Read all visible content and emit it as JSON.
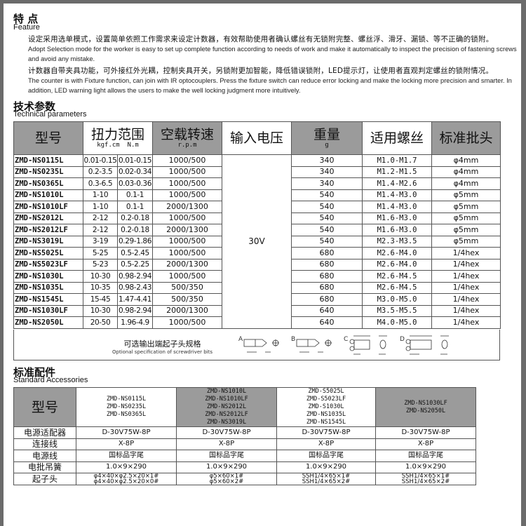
{
  "feature": {
    "title_cn": "特 点",
    "title_en": "Feature",
    "p1_cn": "设定采用选单模式，设置简单依照工作需求来设定计数器，有效帮助使用者确认螺丝有无锁附完整、螺丝浮、滑牙、漏锁、等不正确的锁附。",
    "p1_en": "Adopt Selection mode for the worker is easy to set up complete function according to needs of work and make it automatically to inspect the precision of fastening screws and avoid any mistake.",
    "p2_cn": "计数器自带夹具功能，可外接红外光耦，控制夹具开关，另锁附更加智能，降低错误锁附，LED提示灯，让使用者直观判定螺丝的锁附情况。",
    "p2_en": "The counter is with Fixture function, can join with IR optocouplers. Press the fixture switch can reduce error locking and make the locking more precision and smarter. In addition, LED warning light allows the users to make the well locking judgment more intuitively."
  },
  "tech": {
    "title_cn": "技术参数",
    "title_en": "Technical   parameters",
    "headers": {
      "model": "型号",
      "torque": "扭力范围",
      "torque_u1": "kgf.cm",
      "torque_u2": "N.m",
      "speed": "空载转速",
      "speed_u": "r.p.m",
      "voltage": "输入电压",
      "weight": "重量",
      "weight_u": "g",
      "screw": "适用螺丝",
      "bit": "标准批头"
    },
    "voltage": "30V",
    "rows": [
      [
        "ZMD-NS0115L",
        "0.01-0.15",
        "0.01-0.15",
        "1000/500",
        "340",
        "M1.0-M1.7",
        "φ4mm"
      ],
      [
        "ZMD-NS0235L",
        "0.2-3.5",
        "0.02-0.34",
        "1000/500",
        "340",
        "M1.2-M1.5",
        "φ4mm"
      ],
      [
        "ZMD-NS0365L",
        "0.3-6.5",
        "0.03-0.36",
        "1000/500",
        "340",
        "M1.4-M2.6",
        "φ4mm"
      ],
      [
        "ZMD-NS1010L",
        "1-10",
        "0.1-1",
        "1000/500",
        "540",
        "M1.4-M3.0",
        "φ5mm"
      ],
      [
        "ZMD-NS1010LF",
        "1-10",
        "0.1-1",
        "2000/1300",
        "540",
        "M1.4-M3.0",
        "φ5mm"
      ],
      [
        "ZMD-NS2012L",
        "2-12",
        "0.2-0.18",
        "1000/500",
        "540",
        "M1.6-M3.0",
        "φ5mm"
      ],
      [
        "ZMD-NS2012LF",
        "2-12",
        "0.2-0.18",
        "2000/1300",
        "540",
        "M1.6-M3.0",
        "φ5mm"
      ],
      [
        "ZMD-NS3019L",
        "3-19",
        "0.29-1.86",
        "1000/500",
        "540",
        "M2.3-M3.5",
        "φ5mm"
      ],
      [
        "ZMD-NS5025L",
        "5-25",
        "0.5-2.45",
        "1000/500",
        "680",
        "M2.6-M4.0",
        "1/4hex"
      ],
      [
        "ZMD-NS5023LF",
        "5-23",
        "0.5-2.25",
        "2000/1300",
        "680",
        "M2.6-M4.0",
        "1/4hex"
      ],
      [
        "ZMD-NS1030L",
        "10-30",
        "0.98-2.94",
        "1000/500",
        "680",
        "M2.6-M4.5",
        "1/4hex"
      ],
      [
        "ZMD-NS1035L",
        "10-35",
        "0.98-2.43",
        "500/350",
        "680",
        "M2.6-M4.5",
        "1/4hex"
      ],
      [
        "ZMD-NS1545L",
        "15-45",
        "1.47-4.41",
        "500/350",
        "680",
        "M3.0-M5.0",
        "1/4hex"
      ],
      [
        "ZMD-NS1030LF",
        "10-30",
        "0.98-2.94",
        "2000/1300",
        "640",
        "M3.5-M5.5",
        "1/4hex"
      ],
      [
        "ZMD-NS2050L",
        "20-50",
        "1.96-4.9",
        "1000/500",
        "640",
        "M4.0-M5.0",
        "1/4hex"
      ]
    ],
    "bits": {
      "title_cn": "可选输出端起子头规格",
      "title_en": "Optional specification of screwdriver bits",
      "labels": [
        "A",
        "B",
        "C",
        "D"
      ]
    }
  },
  "acc": {
    "title_cn": "标准配件",
    "title_en": "Standard Accessories",
    "model_label": "型号",
    "groups": [
      [
        "ZMD-NS0115L",
        "ZMD-NS0235L",
        "ZMD-NS0365L"
      ],
      [
        "ZMD-NS1010L",
        "ZMD-NS1010LF",
        "ZMD-NS2012L",
        "ZMD-NS2012LF",
        "ZMD-NS3019L"
      ],
      [
        "ZMD-S5025L",
        "ZMD-S5023LF",
        "ZMD-S1030L",
        "ZMD-NS1035L",
        "ZMD-NS1545L"
      ],
      [
        "ZMD-NS1030LF",
        "ZMD-NS2050L"
      ]
    ],
    "rows": [
      {
        "label": "电源适配器",
        "vals": [
          "D-30V75W-8P",
          "D-30V75W-8P",
          "D-30V75W-8P",
          "D-30V75W-8P"
        ]
      },
      {
        "label": "连接线",
        "vals": [
          "X-8P",
          "X-8P",
          "X-8P",
          "X-8P"
        ]
      },
      {
        "label": "电源线",
        "vals": [
          "国标品字尾",
          "国标品字尾",
          "国标品字尾",
          "国标品字尾"
        ]
      },
      {
        "label": "电批吊簧",
        "vals": [
          "1.0×9×290",
          "1.0×9×290",
          "1.0×9×290",
          "1.0×9×290"
        ]
      },
      {
        "label": "起子头",
        "vals": [
          [
            "φ4×40×φ2.5×20×1#",
            "φ4×40×φ2.5×20×0#"
          ],
          [
            "φ5×60×1#",
            "φ5×60×2#"
          ],
          [
            "SSH1/4×65×1#",
            "SSH1/4×65×2#"
          ],
          [
            "SSH1/4×65×1#",
            "SSH1/4×65×2#"
          ]
        ]
      }
    ]
  }
}
